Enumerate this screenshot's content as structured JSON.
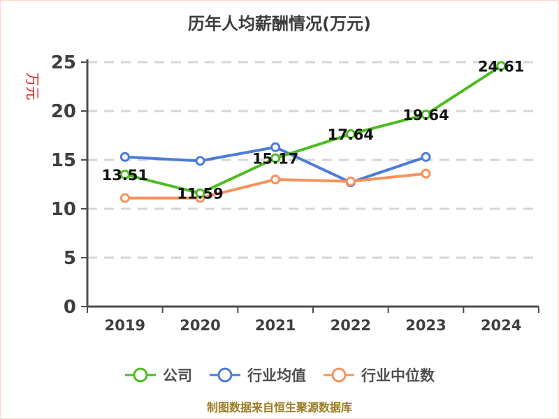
{
  "page": {
    "title": "历年人均薪酬情况(万元)",
    "y_axis_unit": "万元",
    "footer": "制图数据来自恒生聚源数据库"
  },
  "colors": {
    "title_text": "#3d3d3d",
    "axis": "#4d4d4d",
    "tick_text": "#3f3f3f",
    "gridline": "#d6d6d6",
    "unit_label": "#e31c1c",
    "footer_text": "#9a7d20",
    "data_label": "#141414",
    "legend_text": "#4f4f4f",
    "page_border": "#ffd6c9",
    "series_company": "#4dbb21",
    "series_industry_mean": "#4a7cd9",
    "series_industry_median": "#f7925c"
  },
  "chart_data": {
    "type": "line",
    "title": "历年人均薪酬情况(万元)",
    "xlabel": "",
    "ylabel": "万元",
    "categories": [
      "2019",
      "2020",
      "2021",
      "2022",
      "2023",
      "2024"
    ],
    "series": [
      {
        "name": "公司",
        "color": "#4dbb21",
        "values": [
          13.51,
          11.59,
          15.17,
          17.64,
          19.64,
          24.61
        ],
        "labels_shown": true
      },
      {
        "name": "行业均值",
        "color": "#4a7cd9",
        "values": [
          15.3,
          14.9,
          16.3,
          12.7,
          15.3,
          null
        ],
        "labels_shown": false
      },
      {
        "name": "行业中位数",
        "color": "#f7925c",
        "values": [
          11.1,
          11.1,
          13.0,
          12.8,
          13.6,
          null
        ],
        "labels_shown": false
      }
    ],
    "ylim": [
      0,
      25
    ],
    "y_tick_step": 5,
    "y_ticks": [
      0,
      5,
      10,
      15,
      20,
      25
    ],
    "grid": "dashed-horizontal",
    "legend_position": "bottom",
    "marker": "circle-white-fill"
  }
}
